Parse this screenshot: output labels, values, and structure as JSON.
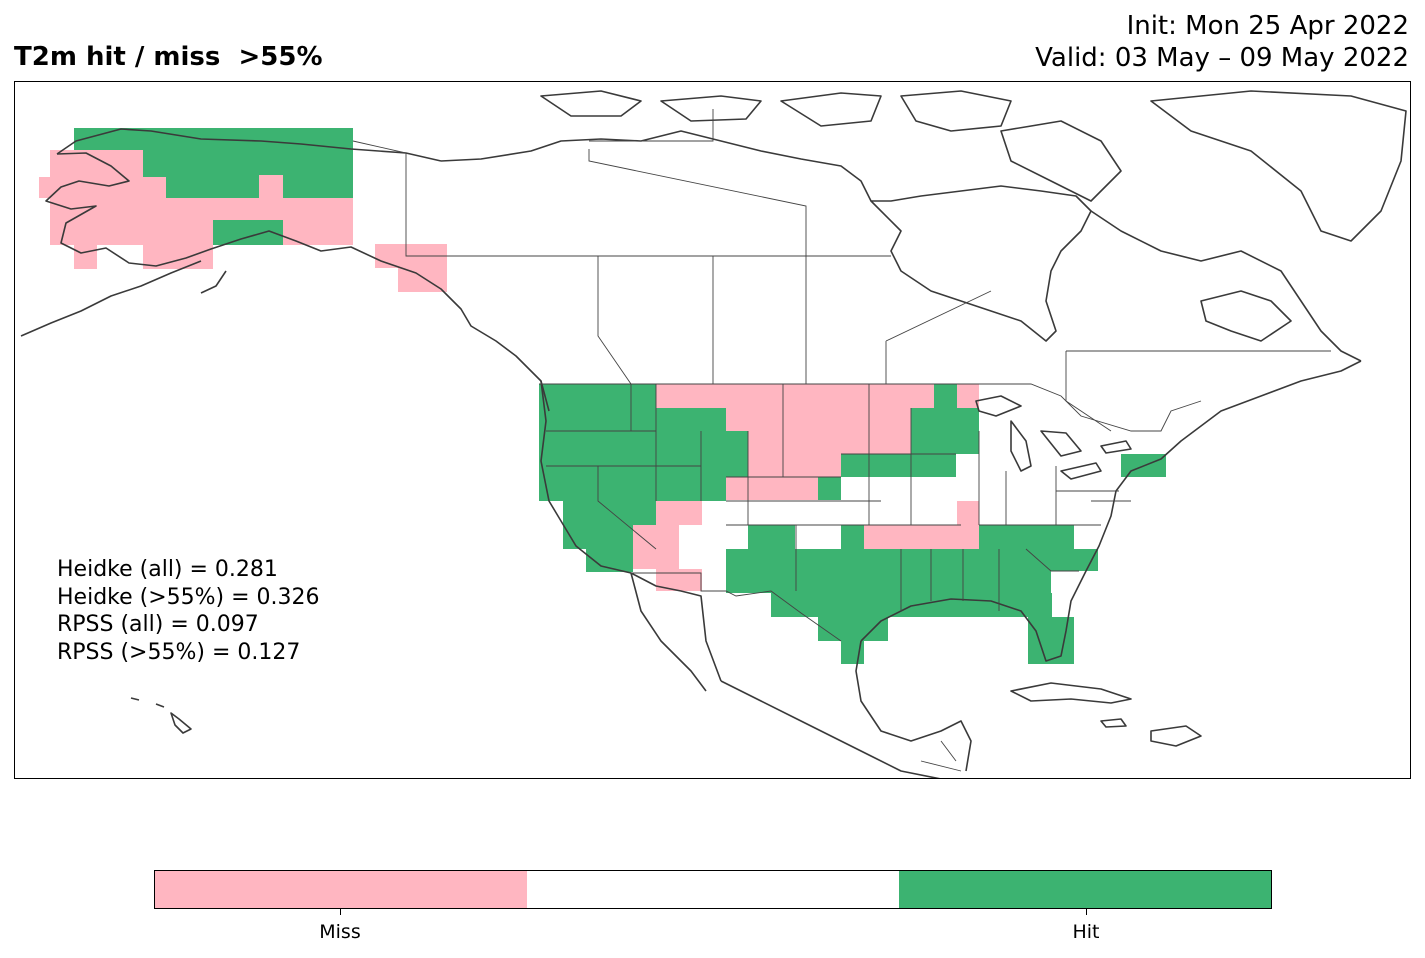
{
  "title": "T2m hit / miss  >55%",
  "init_line": "Init: Mon 25 Apr 2022",
  "valid_line": "Valid: 03 May – 09 May 2022",
  "stats": [
    "Heidke (all) = 0.281",
    "Heidke (>55%) = 0.326",
    "RPSS (all) = 0.097",
    "RPSS (>55%) = 0.127"
  ],
  "colorbar": {
    "categories": [
      "Miss",
      "",
      "Hit"
    ],
    "colors": [
      "#ffb6c1",
      "#ffffff",
      "#3cb371"
    ],
    "tick_labels": [
      "Miss",
      "Hit"
    ]
  },
  "map_regions": [
    {
      "name": "Alaska",
      "outcome": "Mixed"
    },
    {
      "name": "Alaska panhandle",
      "outcome": "Miss"
    },
    {
      "name": "Pacific Northwest",
      "outcome": "Hit"
    },
    {
      "name": "California and Great Basin",
      "outcome": "Hit"
    },
    {
      "name": "Northern Plains",
      "outcome": "Miss"
    },
    {
      "name": "Upper Midwest",
      "outcome": "Hit"
    },
    {
      "name": "Texas and Gulf Coast",
      "outcome": "Hit"
    },
    {
      "name": "Southeast and Florida",
      "outcome": "Hit"
    },
    {
      "name": "Ohio Valley and Northeast",
      "outcome": "None"
    },
    {
      "name": "Southwest",
      "outcome": "Mixed"
    }
  ]
}
